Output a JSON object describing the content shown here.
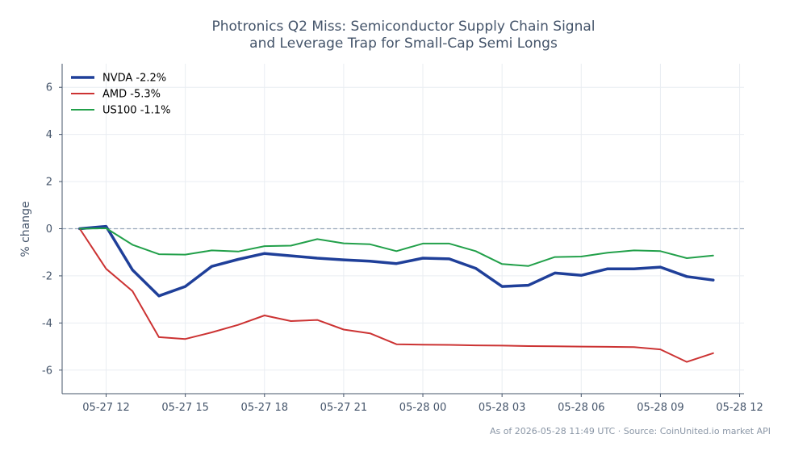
{
  "chart_data": {
    "type": "line",
    "title": [
      "Photronics Q2 Miss: Semiconductor Supply Chain Signal",
      "and Leverage Trap for Small-Cap Semi Longs"
    ],
    "xlabel": "",
    "ylabel": "% change",
    "ylim": [
      -7,
      7
    ],
    "yticks": [
      -6,
      -4,
      -2,
      0,
      2,
      4,
      6
    ],
    "xlim": [
      "05-27 10:20",
      "05-28 12:10"
    ],
    "xtick_labels": [
      "05-27 12",
      "05-27 15",
      "05-27 18",
      "05-27 21",
      "05-28 00",
      "05-28 03",
      "05-28 06",
      "05-28 09",
      "05-28 12"
    ],
    "x": [
      "05-27 11:00",
      "05-27 12:00",
      "05-27 13:00",
      "05-27 14:00",
      "05-27 15:00",
      "05-27 16:00",
      "05-27 17:00",
      "05-27 18:00",
      "05-27 19:00",
      "05-27 20:00",
      "05-27 21:00",
      "05-27 22:00",
      "05-27 23:00",
      "05-28 00:00",
      "05-28 01:00",
      "05-28 02:00",
      "05-28 03:00",
      "05-28 04:00",
      "05-28 05:00",
      "05-28 06:00",
      "05-28 07:00",
      "05-28 08:00",
      "05-28 09:00",
      "05-28 10:00",
      "05-28 11:00"
    ],
    "series": [
      {
        "name": "NVDA -2.2%",
        "color": "#1f3f99",
        "width": 3.5,
        "values": [
          0.0,
          0.1,
          -1.75,
          -2.85,
          -2.45,
          -1.6,
          -1.3,
          -1.05,
          -1.15,
          -1.25,
          -1.32,
          -1.38,
          -1.48,
          -1.25,
          -1.28,
          -1.68,
          -2.45,
          -2.4,
          -1.88,
          -1.98,
          -1.7,
          -1.7,
          -1.63,
          -2.03,
          -2.18
        ]
      },
      {
        "name": "AMD -5.3%",
        "color": "#cc3333",
        "width": 2,
        "values": [
          0.0,
          -1.7,
          -2.65,
          -4.6,
          -4.68,
          -4.4,
          -4.08,
          -3.68,
          -3.92,
          -3.87,
          -4.28,
          -4.44,
          -4.9,
          -4.92,
          -4.93,
          -4.95,
          -4.96,
          -4.98,
          -4.99,
          -5.0,
          -5.01,
          -5.02,
          -5.12,
          -5.65,
          -5.28
        ]
      },
      {
        "name": "US100 -1.1%",
        "color": "#22a04a",
        "width": 2,
        "values": [
          0.0,
          0.02,
          -0.68,
          -1.08,
          -1.1,
          -0.92,
          -0.97,
          -0.74,
          -0.72,
          -0.44,
          -0.62,
          -0.66,
          -0.95,
          -0.63,
          -0.63,
          -0.95,
          -1.5,
          -1.58,
          -1.2,
          -1.18,
          -1.02,
          -0.92,
          -0.95,
          -1.25,
          -1.14
        ]
      }
    ],
    "zero_line": true,
    "grid": true,
    "legend": "top-left",
    "footer": "As of 2026-05-28 11:49 UTC · Source: CoinUnited.io market API"
  }
}
